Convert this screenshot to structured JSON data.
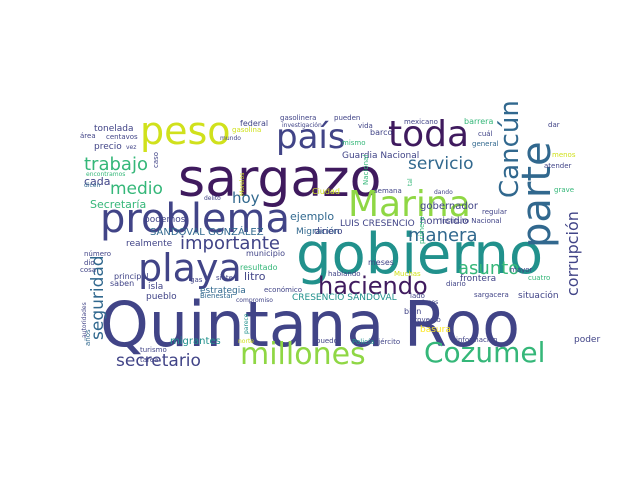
{
  "palette": {
    "dark_purple": "#3f1a5e",
    "indigo": "#414487",
    "blue": "#31688e",
    "teal": "#21918c",
    "green": "#35b779",
    "lime": "#8fd744",
    "yellow": "#d0e11c",
    "gold": "#fde725"
  },
  "words": [
    {
      "text": "Quintana Roo"
    },
    {
      "text": "gobierno"
    },
    {
      "text": "sargazo"
    },
    {
      "text": "problema"
    },
    {
      "text": "playa"
    },
    {
      "text": "toda"
    },
    {
      "text": "país"
    },
    {
      "text": "peso"
    },
    {
      "text": "Marina"
    },
    {
      "text": "parte"
    },
    {
      "text": "Cancún"
    },
    {
      "text": "millones"
    },
    {
      "text": "Cozumel"
    },
    {
      "text": "haciendo"
    },
    {
      "text": "importante"
    },
    {
      "text": "trabajo"
    },
    {
      "text": "servicio"
    },
    {
      "text": "medio"
    },
    {
      "text": "manera"
    },
    {
      "text": "asunto"
    },
    {
      "text": "corrupción"
    },
    {
      "text": "seguridad"
    },
    {
      "text": "secretario"
    },
    {
      "text": "hoy"
    },
    {
      "text": "Secretaría"
    },
    {
      "text": "SANDOVAL GONZÁLEZ"
    },
    {
      "text": "gobernador"
    },
    {
      "text": "homicidio"
    },
    {
      "text": "cada"
    },
    {
      "text": "ejemplo"
    },
    {
      "text": "LUIS CRESENCIO"
    },
    {
      "text": "Migración"
    },
    {
      "text": "dinero"
    },
    {
      "text": "Guardia Nacional"
    },
    {
      "text": "litro"
    },
    {
      "text": "isla"
    },
    {
      "text": "pueblo"
    },
    {
      "text": "frontera"
    },
    {
      "text": "situación"
    },
    {
      "text": "CRESENCIO SANDOVAL"
    },
    {
      "text": "estrategia"
    },
    {
      "text": "migrantes"
    },
    {
      "text": "basura"
    },
    {
      "text": "poder"
    },
    {
      "text": "tonelada"
    },
    {
      "text": "precio"
    },
    {
      "text": "barco"
    },
    {
      "text": "mexicano"
    },
    {
      "text": "barrera"
    },
    {
      "text": "federal"
    },
    {
      "text": "gasolinera"
    },
    {
      "text": "pueden"
    },
    {
      "text": "podemos"
    },
    {
      "text": "realmente"
    },
    {
      "text": "municipio"
    },
    {
      "text": "resultado"
    },
    {
      "text": "meses"
    },
    {
      "text": "Ciudad"
    },
    {
      "text": "semana"
    },
    {
      "text": "regular"
    },
    {
      "text": "Instituto Nacional"
    },
    {
      "text": "principal"
    },
    {
      "text": "saben"
    },
    {
      "text": "hablando"
    },
    {
      "text": "Muchas"
    },
    {
      "text": "bien"
    },
    {
      "text": "proyecto"
    },
    {
      "text": "Policía"
    },
    {
      "text": "puedo"
    },
    {
      "text": "ejército"
    },
    {
      "text": "turismo"
    },
    {
      "text": "tarea"
    },
    {
      "text": "económico"
    },
    {
      "text": "mayor"
    },
    {
      "text": "sargacera"
    },
    {
      "text": "información"
    },
    {
      "text": "atender"
    },
    {
      "text": "menos"
    },
    {
      "text": "general"
    },
    {
      "text": "cuál"
    },
    {
      "text": "dar"
    },
    {
      "text": "vida"
    },
    {
      "text": "mismo"
    },
    {
      "text": "investigación"
    },
    {
      "text": "gasolina"
    },
    {
      "text": "mundo"
    },
    {
      "text": "centavos"
    },
    {
      "text": "área"
    },
    {
      "text": "vez"
    },
    {
      "text": "encontramos"
    },
    {
      "text": "dicen"
    },
    {
      "text": "delito"
    },
    {
      "text": "gas"
    },
    {
      "text": "siete"
    },
    {
      "text": "Bienestar"
    },
    {
      "text": "compromiso"
    },
    {
      "text": "norte"
    },
    {
      "text": "número"
    },
    {
      "text": "dio"
    },
    {
      "text": "cosa"
    },
    {
      "text": "lado"
    },
    {
      "text": "diario"
    },
    {
      "text": "cuatro"
    },
    {
      "text": "grave"
    },
    {
      "text": "acciones"
    },
    {
      "text": "dando"
    },
    {
      "text": "primera"
    },
    {
      "text": "años"
    },
    {
      "text": "autoridades"
    },
    {
      "text": "Morelos"
    },
    {
      "text": "caso"
    },
    {
      "text": "Nacional"
    },
    {
      "text": "parece"
    },
    {
      "text": "tal"
    }
  ]
}
